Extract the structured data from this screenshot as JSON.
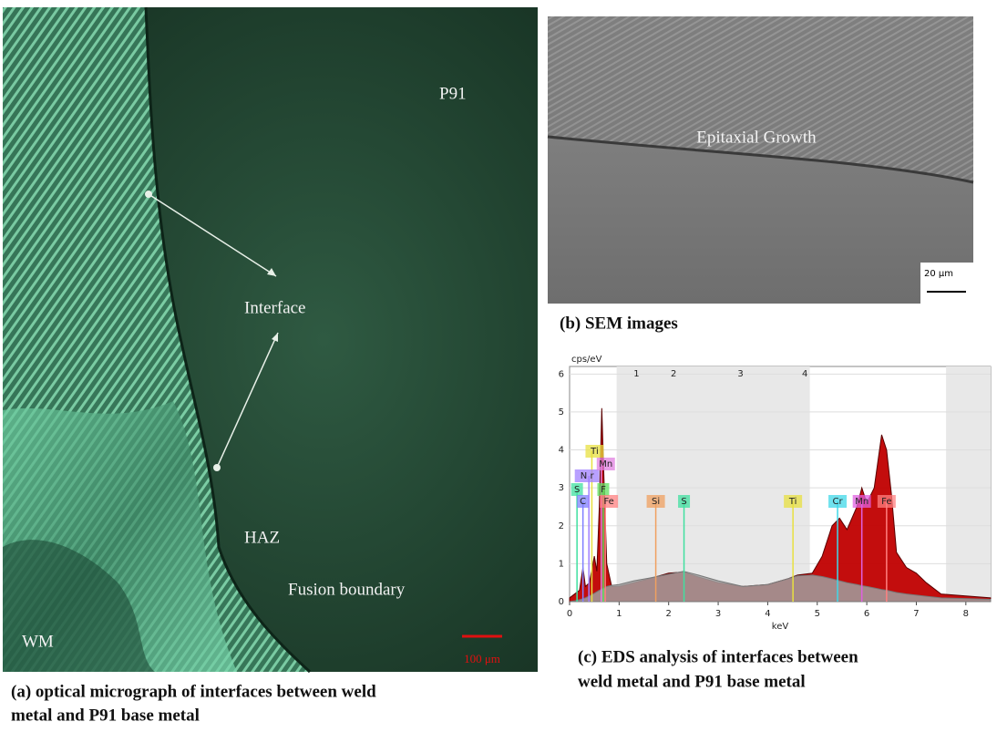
{
  "panel_a": {
    "labels": {
      "p91": "P91",
      "interface": "Interface",
      "haz": "HAZ",
      "fusion": "Fusion boundary",
      "wm": "WM"
    },
    "scale_bar": "100 μm",
    "caption": [
      "(a) optical micrograph of interfaces between weld",
      "metal and P91 base metal"
    ]
  },
  "panel_b": {
    "label": "Epitaxial Growth",
    "scale_bar": "20 μm",
    "caption": "(b) SEM images"
  },
  "panel_c": {
    "caption": [
      "(c) EDS analysis of interfaces between",
      "weld metal and P91 base metal"
    ]
  },
  "chart_data": {
    "type": "area",
    "y_label": "cps/eV",
    "x_label": "keV",
    "xlim": [
      0,
      8.5
    ],
    "ylim": [
      0,
      6.2
    ],
    "xticks": [
      0,
      1,
      2,
      3,
      4,
      5,
      6,
      7,
      8
    ],
    "yticks": [
      0,
      1,
      2,
      3,
      4,
      5,
      6
    ],
    "shaded": [
      [
        0.95,
        4.85
      ],
      [
        7.6,
        8.5
      ]
    ],
    "region_labels": [
      "1",
      "2",
      "3",
      "4"
    ],
    "x": [
      0,
      0.1,
      0.2,
      0.27,
      0.32,
      0.4,
      0.5,
      0.55,
      0.6,
      0.65,
      0.7,
      0.75,
      0.85,
      1.0,
      1.3,
      1.6,
      2.0,
      2.3,
      2.6,
      3.0,
      3.5,
      4.0,
      4.4,
      4.6,
      4.9,
      5.1,
      5.3,
      5.45,
      5.6,
      5.8,
      5.9,
      6.0,
      6.15,
      6.3,
      6.4,
      6.5,
      6.6,
      6.8,
      7.0,
      7.2,
      7.5,
      8.0,
      8.5
    ],
    "series": [
      {
        "color": "#c00000",
        "values": [
          0.1,
          0.2,
          0.3,
          0.9,
          0.4,
          0.5,
          1.2,
          0.8,
          2.5,
          5.1,
          3.0,
          1.0,
          0.4,
          0.4,
          0.5,
          0.6,
          0.75,
          0.78,
          0.65,
          0.5,
          0.4,
          0.45,
          0.6,
          0.7,
          0.75,
          1.2,
          2.0,
          2.2,
          1.9,
          2.5,
          3.0,
          2.6,
          3.0,
          4.4,
          4.0,
          2.8,
          1.3,
          0.9,
          0.75,
          0.5,
          0.2,
          0.15,
          0.1
        ]
      },
      {
        "color": "#a0a0a0",
        "values": [
          0,
          0.02,
          0.05,
          0.08,
          0.1,
          0.15,
          0.22,
          0.26,
          0.3,
          0.33,
          0.36,
          0.4,
          0.43,
          0.45,
          0.55,
          0.62,
          0.72,
          0.8,
          0.7,
          0.55,
          0.4,
          0.45,
          0.6,
          0.68,
          0.7,
          0.66,
          0.6,
          0.55,
          0.5,
          0.45,
          0.42,
          0.4,
          0.36,
          0.32,
          0.3,
          0.27,
          0.24,
          0.2,
          0.17,
          0.14,
          0.1,
          0.08,
          0.06
        ]
      }
    ],
    "peaks": [
      {
        "label": "S",
        "x": 0.15,
        "color": "#40e0a0"
      },
      {
        "label": "C",
        "x": 0.27,
        "color": "#8080ff"
      },
      {
        "label": "Ti",
        "x": 0.45,
        "color": "#e8e040"
      },
      {
        "label": "N r",
        "x": 0.39,
        "color": "#a080ff"
      },
      {
        "label": "Mn",
        "x": 0.64,
        "color": "#e080e0"
      },
      {
        "label": "F",
        "x": 0.68,
        "color": "#60e060"
      },
      {
        "label": "Fe",
        "x": 0.72,
        "color": "#ff8080"
      },
      {
        "label": "Si",
        "x": 1.74,
        "color": "#f0a060"
      },
      {
        "label": "S",
        "x": 2.31,
        "color": "#40e0a0"
      },
      {
        "label": "Ti",
        "x": 4.51,
        "color": "#e8e040"
      },
      {
        "label": "Cr",
        "x": 5.41,
        "color": "#40d8e8"
      },
      {
        "label": "Mn",
        "x": 5.9,
        "color": "#e060e0"
      },
      {
        "label": "Fe",
        "x": 6.4,
        "color": "#ff8080"
      }
    ]
  }
}
